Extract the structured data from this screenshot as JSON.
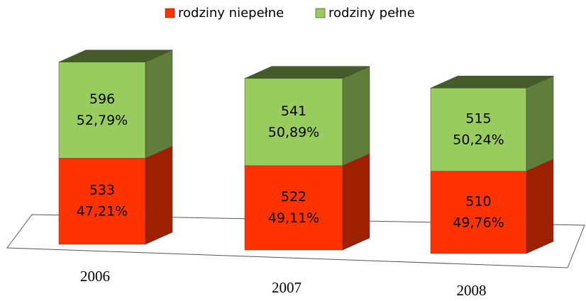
{
  "chart_data": {
    "type": "bar3d_stacked",
    "categories": [
      "2006",
      "2007",
      "2008"
    ],
    "series": [
      {
        "name": "rodziny niepełne",
        "color": "#ff3300",
        "values": [
          533,
          522,
          510
        ],
        "shares": [
          47.21,
          49.11,
          49.76
        ],
        "share_labels": [
          "47,21%",
          "49,11%",
          "49,76%"
        ]
      },
      {
        "name": "rodziny pełne",
        "color": "#99cc5e",
        "values": [
          596,
          541,
          515
        ],
        "shares": [
          52.79,
          50.89,
          50.24
        ],
        "share_labels": [
          "52,79%",
          "50,89%",
          "50,24%"
        ]
      }
    ],
    "legend": "top"
  }
}
